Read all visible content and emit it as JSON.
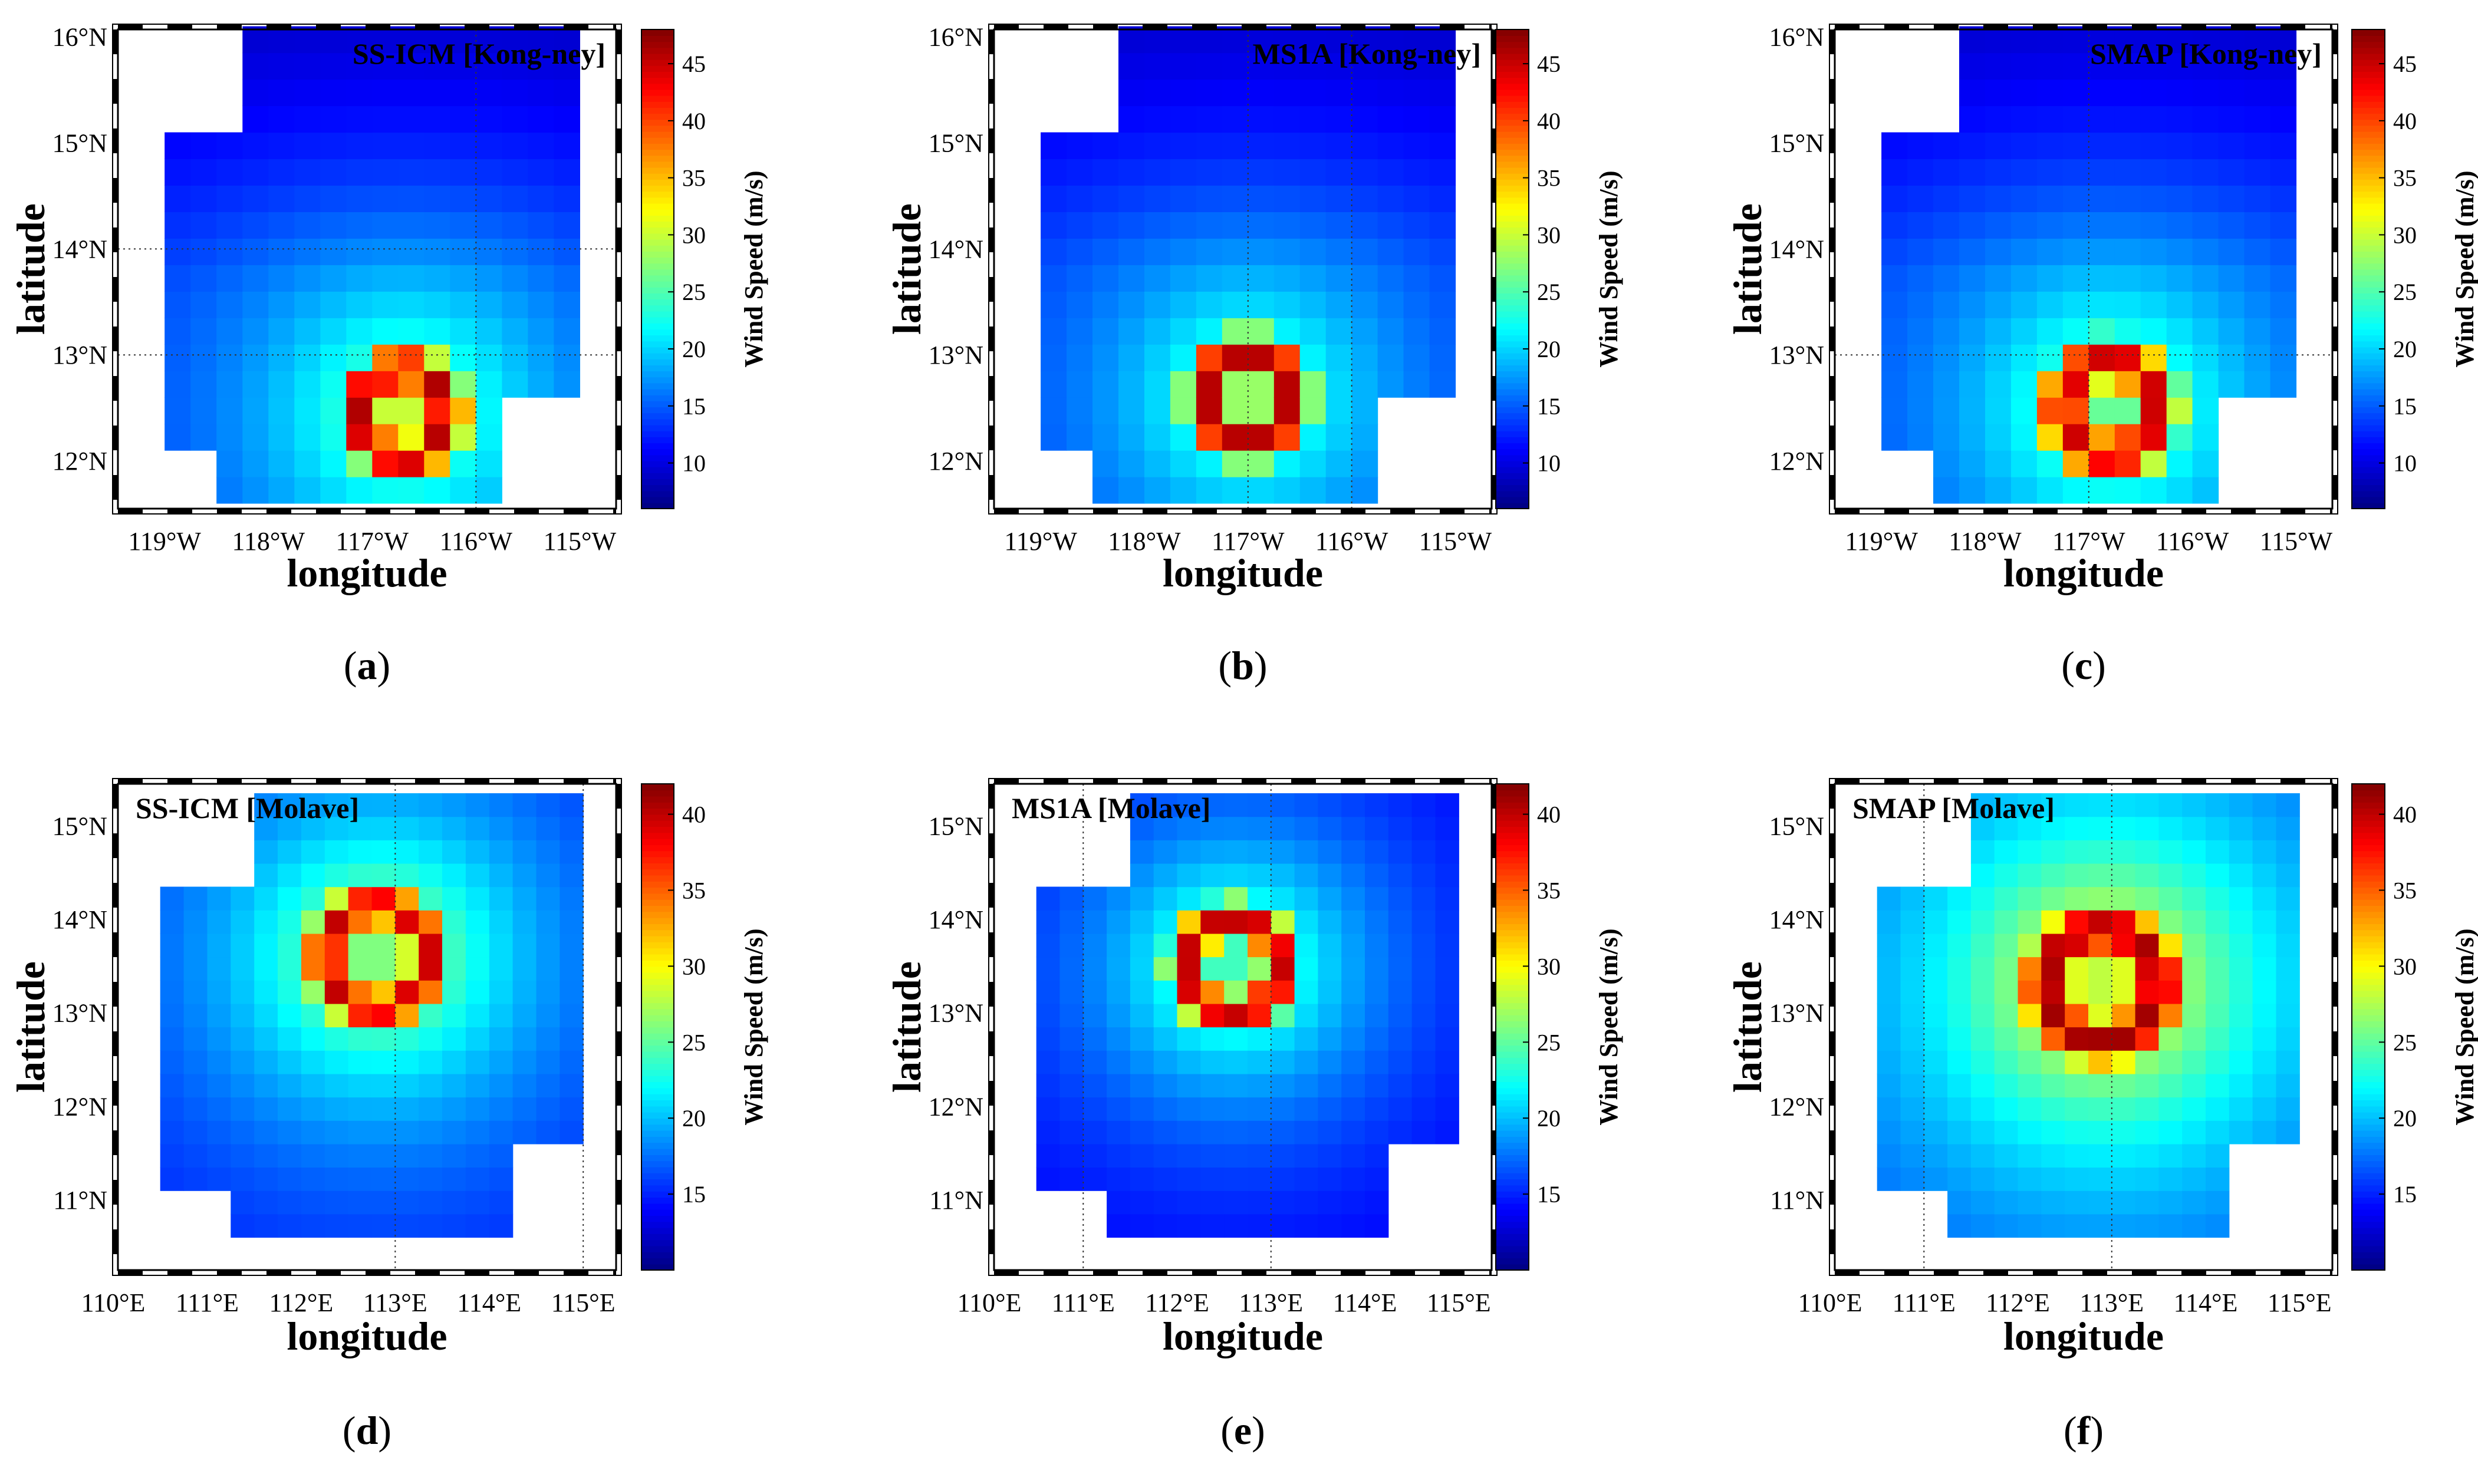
{
  "figure": {
    "panel_letters": [
      "a",
      "b",
      "c",
      "d",
      "e",
      "f"
    ]
  },
  "chart_data": [
    {
      "type": "heatmap",
      "title": "SS-ICM [Kong-ney]",
      "panel_label": "(a)",
      "xlabel": "longitude",
      "ylabel": "latitude",
      "colorbar_label": "Wind Speed (m/s)",
      "x_ticks": [
        "119°W",
        "118°W",
        "117°W",
        "116°W",
        "115°W"
      ],
      "x_tick_values": [
        -119,
        -118,
        -117,
        -116,
        -115
      ],
      "y_ticks": [
        "16°N",
        "15°N",
        "14°N",
        "13°N",
        "12°N"
      ],
      "y_tick_values": [
        16,
        15,
        14,
        13,
        12
      ],
      "xlim": [
        -119.45,
        -114.65
      ],
      "ylim": [
        11.55,
        16.07
      ],
      "grid_x": [
        -116
      ],
      "grid_y": [
        14,
        13
      ],
      "cell_deg": 0.25,
      "colorbar_range": [
        6,
        48
      ],
      "colorbar_ticks": [
        10,
        15,
        20,
        25,
        30,
        35,
        40,
        45
      ],
      "field": {
        "base": 12,
        "center": [
          -116.7,
          12.45
        ],
        "eye_radius": 0.18,
        "eye_speed": 30,
        "ring_radius": 0.42,
        "ring_width": 0.3,
        "ring_peak": 46,
        "decay_amp": 13,
        "decay_dist": 1.3,
        "north_falloff": 3.5,
        "extent_lon": [
          -119.0,
          -115.0
        ],
        "extent_lat": [
          11.6,
          15.9
        ]
      }
    },
    {
      "type": "heatmap",
      "title": "MS1A [Kong-ney]",
      "panel_label": "(b)",
      "xlabel": "longitude",
      "ylabel": "latitude",
      "colorbar_label": "Wind Speed (m/s)",
      "x_ticks": [
        "119°W",
        "118°W",
        "117°W",
        "116°W",
        "115°W"
      ],
      "x_tick_values": [
        -119,
        -118,
        -117,
        -116,
        -115
      ],
      "y_ticks": [
        "16°N",
        "15°N",
        "14°N",
        "13°N",
        "12°N"
      ],
      "y_tick_values": [
        16,
        15,
        14,
        13,
        12
      ],
      "xlim": [
        -119.45,
        -114.65
      ],
      "ylim": [
        11.55,
        16.07
      ],
      "grid_x": [
        -117,
        -116
      ],
      "grid_y": [],
      "cell_deg": 0.25,
      "colorbar_range": [
        6,
        48
      ],
      "colorbar_ticks": [
        10,
        15,
        20,
        25,
        30,
        35,
        40,
        45
      ],
      "field": {
        "base": 12,
        "center": [
          -117.0,
          12.6
        ],
        "eye_radius": 0.18,
        "eye_speed": 28,
        "ring_radius": 0.42,
        "ring_width": 0.3,
        "ring_peak": 46,
        "decay_amp": 12,
        "decay_dist": 1.2,
        "north_falloff": 3.5,
        "extent_lon": [
          -119.0,
          -115.0
        ],
        "extent_lat": [
          11.6,
          15.9
        ]
      }
    },
    {
      "type": "heatmap",
      "title": "SMAP [Kong-ney]",
      "panel_label": "(c)",
      "xlabel": "longitude",
      "ylabel": "latitude",
      "colorbar_label": "Wind Speed (m/s)",
      "x_ticks": [
        "119°W",
        "118°W",
        "117°W",
        "116°W",
        "115°W"
      ],
      "x_tick_values": [
        -119,
        -118,
        -117,
        -116,
        -115
      ],
      "y_ticks": [
        "16°N",
        "15°N",
        "14°N",
        "13°N",
        "12°N"
      ],
      "y_tick_values": [
        16,
        15,
        14,
        13,
        12
      ],
      "xlim": [
        -119.45,
        -114.65
      ],
      "ylim": [
        11.55,
        16.07
      ],
      "grid_x": [
        -117
      ],
      "grid_y": [
        13
      ],
      "cell_deg": 0.25,
      "colorbar_range": [
        6,
        48
      ],
      "colorbar_ticks": [
        10,
        15,
        20,
        25,
        30,
        35,
        40,
        45
      ],
      "field": {
        "base": 12,
        "center": [
          -116.8,
          12.5
        ],
        "eye_radius": 0.2,
        "eye_speed": 26,
        "ring_radius": 0.45,
        "ring_width": 0.35,
        "ring_peak": 45,
        "decay_amp": 13,
        "decay_dist": 1.3,
        "north_falloff": 3.5,
        "extent_lon": [
          -119.0,
          -115.0
        ],
        "extent_lat": [
          11.6,
          15.9
        ]
      }
    },
    {
      "type": "heatmap",
      "title": "SS-ICM [Molave]",
      "panel_label": "(d)",
      "xlabel": "longitude",
      "ylabel": "latitude",
      "colorbar_label": "Wind Speed (m/s)",
      "x_ticks": [
        "110°E",
        "111°E",
        "112°E",
        "113°E",
        "114°E",
        "115°E"
      ],
      "x_tick_values": [
        110,
        111,
        112,
        113,
        114,
        115
      ],
      "y_ticks": [
        "15°N",
        "14°N",
        "13°N",
        "12°N",
        "11°N"
      ],
      "y_tick_values": [
        15,
        14,
        13,
        12,
        11
      ],
      "xlim": [
        110.05,
        115.35
      ],
      "ylim": [
        10.25,
        15.45
      ],
      "grid_x": [
        113,
        115
      ],
      "grid_y": [],
      "cell_deg": 0.25,
      "colorbar_range": [
        10,
        42
      ],
      "colorbar_ticks": [
        15,
        20,
        25,
        30,
        35,
        40
      ],
      "field": {
        "base": 14,
        "center": [
          112.8,
          13.6
        ],
        "eye_radius": 0.2,
        "eye_speed": 26,
        "ring_radius": 0.55,
        "ring_width": 0.35,
        "ring_peak": 40,
        "decay_amp": 12,
        "decay_dist": 1.4,
        "north_falloff": 0,
        "extent_lon": [
          110.5,
          115.0
        ],
        "extent_lat": [
          10.6,
          15.2
        ]
      }
    },
    {
      "type": "heatmap",
      "title": "MS1A [Molave]",
      "panel_label": "(e)",
      "xlabel": "longitude",
      "ylabel": "latitude",
      "colorbar_label": "Wind Speed (m/s)",
      "x_ticks": [
        "110°E",
        "111°E",
        "112°E",
        "113°E",
        "114°E",
        "115°E"
      ],
      "x_tick_values": [
        110,
        111,
        112,
        113,
        114,
        115
      ],
      "y_ticks": [
        "15°N",
        "14°N",
        "13°N",
        "12°N",
        "11°N"
      ],
      "y_tick_values": [
        15,
        14,
        13,
        12,
        11
      ],
      "xlim": [
        110.05,
        115.35
      ],
      "ylim": [
        10.25,
        15.45
      ],
      "grid_x": [
        111,
        113
      ],
      "grid_y": [],
      "cell_deg": 0.25,
      "colorbar_range": [
        10,
        42
      ],
      "colorbar_ticks": [
        15,
        20,
        25,
        30,
        35,
        40
      ],
      "field": {
        "base": 13,
        "center": [
          112.6,
          13.5
        ],
        "eye_radius": 0.2,
        "eye_speed": 24,
        "ring_radius": 0.5,
        "ring_width": 0.35,
        "ring_peak": 40,
        "decay_amp": 11,
        "decay_dist": 1.3,
        "north_falloff": 0,
        "extent_lon": [
          110.5,
          115.0
        ],
        "extent_lat": [
          10.6,
          15.2
        ]
      }
    },
    {
      "type": "heatmap",
      "title": "SMAP [Molave]",
      "panel_label": "(f)",
      "xlabel": "longitude",
      "ylabel": "latitude",
      "colorbar_label": "Wind Speed (m/s)",
      "x_ticks": [
        "110°E",
        "111°E",
        "112°E",
        "113°E",
        "114°E",
        "115°E"
      ],
      "x_tick_values": [
        110,
        111,
        112,
        113,
        114,
        115
      ],
      "y_ticks": [
        "15°N",
        "14°N",
        "13°N",
        "12°N",
        "11°N"
      ],
      "y_tick_values": [
        15,
        14,
        13,
        12,
        11
      ],
      "xlim": [
        110.05,
        115.35
      ],
      "ylim": [
        10.25,
        15.45
      ],
      "grid_x": [
        111,
        113
      ],
      "grid_y": [],
      "cell_deg": 0.25,
      "colorbar_range": [
        10,
        42
      ],
      "colorbar_ticks": [
        15,
        20,
        25,
        30,
        35,
        40
      ],
      "field": {
        "base": 15,
        "center": [
          112.9,
          13.3
        ],
        "eye_radius": 0.2,
        "eye_speed": 28,
        "ring_radius": 0.6,
        "ring_width": 0.45,
        "ring_peak": 41,
        "decay_amp": 14,
        "decay_dist": 1.6,
        "north_falloff": 0,
        "extent_lon": [
          110.5,
          115.0
        ],
        "extent_lat": [
          10.6,
          15.2
        ]
      }
    }
  ]
}
